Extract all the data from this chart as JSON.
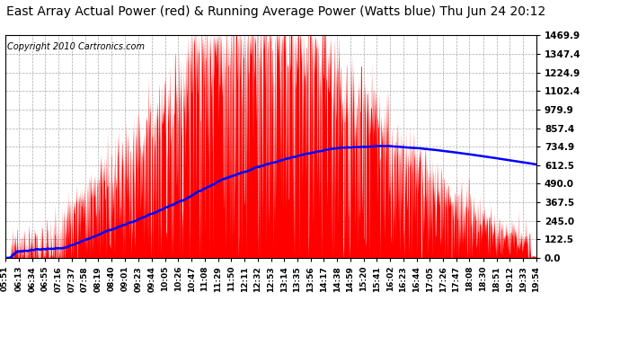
{
  "title": "East Array Actual Power (red) & Running Average Power (Watts blue) Thu Jun 24 20:12",
  "copyright": "Copyright 2010 Cartronics.com",
  "ylabel_right": [
    "1469.9",
    "1347.4",
    "1224.9",
    "1102.4",
    "979.9",
    "857.4",
    "734.9",
    "612.5",
    "490.0",
    "367.5",
    "245.0",
    "122.5",
    "0.0"
  ],
  "ymax": 1469.9,
  "ymin": 0.0,
  "background_color": "#ffffff",
  "plot_bg_color": "#ffffff",
  "grid_color": "#aaaaaa",
  "bar_color": "#ff0000",
  "avg_color": "#0000ff",
  "title_fontsize": 10,
  "copyright_fontsize": 7,
  "x_tick_labels": [
    "05:51",
    "06:13",
    "06:34",
    "06:55",
    "07:16",
    "07:37",
    "07:58",
    "08:19",
    "08:40",
    "09:01",
    "09:23",
    "09:44",
    "10:05",
    "10:26",
    "10:47",
    "11:08",
    "11:29",
    "11:50",
    "12:11",
    "12:32",
    "12:53",
    "13:14",
    "13:35",
    "13:56",
    "14:17",
    "14:38",
    "14:59",
    "15:20",
    "15:41",
    "16:02",
    "16:23",
    "16:44",
    "17:05",
    "17:26",
    "17:47",
    "18:08",
    "18:30",
    "18:51",
    "19:12",
    "19:33",
    "19:54"
  ]
}
